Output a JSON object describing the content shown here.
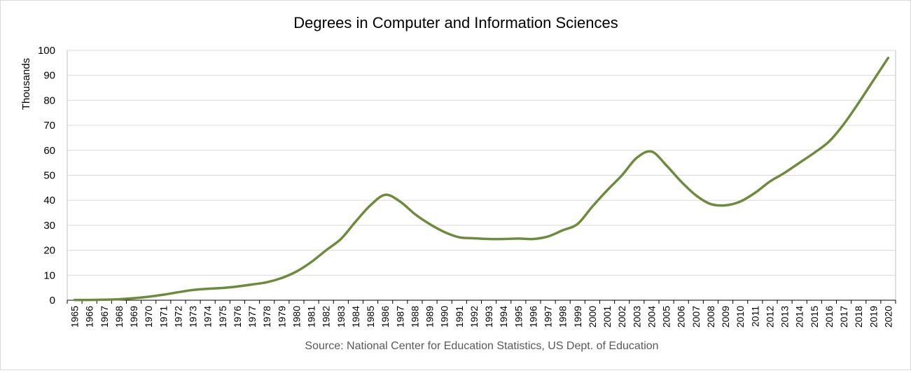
{
  "chart_data": {
    "type": "line",
    "title": "Degrees in Computer and Information Sciences",
    "ylabel": "Thousands",
    "xlabel": "",
    "source": "Source: National Center for Education Statistics, US Dept. of Education",
    "ylim": [
      0,
      100
    ],
    "yticks": [
      0,
      10,
      20,
      30,
      40,
      50,
      60,
      70,
      80,
      90,
      100
    ],
    "grid": true,
    "legend": "none",
    "line_color": "#6e8b3d",
    "x": [
      1965,
      1966,
      1967,
      1968,
      1969,
      1970,
      1971,
      1972,
      1973,
      1974,
      1975,
      1976,
      1977,
      1978,
      1979,
      1980,
      1981,
      1982,
      1983,
      1984,
      1985,
      1986,
      1987,
      1988,
      1989,
      1990,
      1991,
      1992,
      1993,
      1994,
      1995,
      1996,
      1997,
      1998,
      1999,
      2000,
      2001,
      2002,
      2003,
      2004,
      2005,
      2006,
      2007,
      2008,
      2009,
      2010,
      2011,
      2012,
      2013,
      2014,
      2015,
      2016,
      2017,
      2018,
      2019,
      2020
    ],
    "series": [
      {
        "values": [
          0.1,
          0.1,
          0.2,
          0.4,
          0.8,
          1.4,
          2.2,
          3.2,
          4.1,
          4.6,
          4.9,
          5.5,
          6.3,
          7.2,
          8.9,
          11.5,
          15.3,
          20.0,
          24.5,
          31.5,
          38.0,
          42.2,
          39.5,
          34.5,
          30.5,
          27.3,
          25.2,
          24.8,
          24.5,
          24.5,
          24.7,
          24.5,
          25.5,
          28.0,
          30.5,
          37.5,
          44.0,
          50.0,
          57.0,
          59.5,
          54.0,
          47.5,
          42.0,
          38.5,
          38.0,
          39.5,
          43.0,
          47.5,
          51.0,
          55.0,
          59.0,
          63.5,
          70.5,
          79.0,
          88.0,
          97.0
        ]
      }
    ]
  }
}
